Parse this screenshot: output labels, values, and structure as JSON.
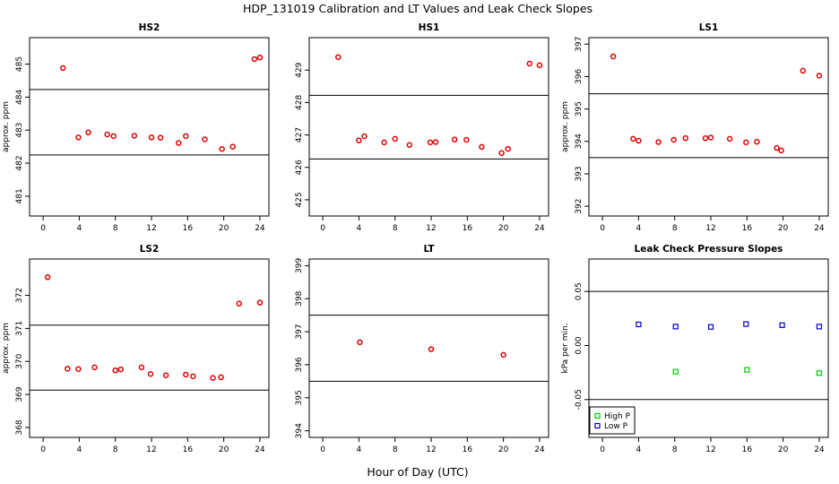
{
  "figure": {
    "title": "HDP_131019  Calibration and LT Values and Leak Check Slopes",
    "xlabel": "Hour of Day (UTC)"
  },
  "chart_data": [
    {
      "type": "scatter",
      "title": "HS2",
      "ylabel": "approx. ppm",
      "xlim": [
        -1.5,
        25
      ],
      "ylim": [
        480.4,
        485.8
      ],
      "xticks": [
        0,
        4,
        8,
        12,
        16,
        20,
        24
      ],
      "yticks": [
        481,
        482,
        483,
        484,
        485
      ],
      "hlines": [
        484.23,
        482.25
      ],
      "series": [
        {
          "name": "values",
          "color": "#dd0000",
          "marker": "circle",
          "points": [
            [
              2.2,
              484.88
            ],
            [
              3.9,
              482.78
            ],
            [
              5.0,
              482.93
            ],
            [
              7.1,
              482.87
            ],
            [
              7.8,
              482.82
            ],
            [
              10.1,
              482.83
            ],
            [
              12.0,
              482.78
            ],
            [
              13.0,
              482.77
            ],
            [
              15.0,
              482.61
            ],
            [
              15.8,
              482.82
            ],
            [
              17.9,
              482.72
            ],
            [
              19.8,
              482.43
            ],
            [
              21.0,
              482.5
            ],
            [
              23.4,
              485.15
            ],
            [
              24.0,
              485.2
            ]
          ]
        }
      ]
    },
    {
      "type": "scatter",
      "title": "HS1",
      "ylabel": "",
      "xlim": [
        -1.5,
        25
      ],
      "ylim": [
        424.5,
        430.0
      ],
      "xticks": [
        0,
        4,
        8,
        12,
        16,
        20,
        24
      ],
      "yticks": [
        425,
        426,
        427,
        428,
        429
      ],
      "hlines": [
        428.22,
        426.26
      ],
      "series": [
        {
          "name": "values",
          "color": "#dd0000",
          "marker": "circle",
          "points": [
            [
              1.7,
              429.4
            ],
            [
              4.0,
              426.83
            ],
            [
              4.6,
              426.96
            ],
            [
              6.8,
              426.77
            ],
            [
              8.0,
              426.88
            ],
            [
              9.6,
              426.69
            ],
            [
              11.9,
              426.77
            ],
            [
              12.5,
              426.78
            ],
            [
              14.6,
              426.86
            ],
            [
              15.9,
              426.85
            ],
            [
              17.6,
              426.63
            ],
            [
              19.8,
              426.44
            ],
            [
              20.5,
              426.57
            ],
            [
              22.9,
              429.2
            ],
            [
              24.0,
              429.15
            ]
          ]
        }
      ]
    },
    {
      "type": "scatter",
      "title": "LS1",
      "ylabel": "approx. ppm",
      "xlim": [
        -1.5,
        25
      ],
      "ylim": [
        391.7,
        397.2
      ],
      "xticks": [
        0,
        4,
        8,
        12,
        16,
        20,
        24
      ],
      "yticks": [
        392,
        393,
        394,
        395,
        396,
        397
      ],
      "hlines": [
        395.47,
        393.5
      ],
      "series": [
        {
          "name": "values",
          "color": "#dd0000",
          "marker": "circle",
          "points": [
            [
              1.2,
              396.62
            ],
            [
              3.4,
              394.08
            ],
            [
              4.0,
              394.02
            ],
            [
              6.2,
              393.98
            ],
            [
              7.9,
              394.05
            ],
            [
              9.2,
              394.1
            ],
            [
              11.4,
              394.1
            ],
            [
              12.0,
              394.12
            ],
            [
              14.1,
              394.08
            ],
            [
              15.9,
              393.97
            ],
            [
              17.1,
              393.99
            ],
            [
              19.3,
              393.8
            ],
            [
              19.8,
              393.72
            ],
            [
              22.2,
              396.18
            ],
            [
              24.0,
              396.03
            ]
          ]
        }
      ]
    },
    {
      "type": "scatter",
      "title": "LS2",
      "ylabel": "approx. ppm",
      "xlim": [
        -1.5,
        25
      ],
      "ylim": [
        367.7,
        373.1
      ],
      "xticks": [
        0,
        4,
        8,
        12,
        16,
        20,
        24
      ],
      "yticks": [
        368,
        369,
        370,
        371,
        372
      ],
      "hlines": [
        371.1,
        369.13
      ],
      "series": [
        {
          "name": "values",
          "color": "#dd0000",
          "marker": "circle",
          "points": [
            [
              0.5,
              372.55
            ],
            [
              2.7,
              369.78
            ],
            [
              3.9,
              369.77
            ],
            [
              5.7,
              369.82
            ],
            [
              8.0,
              369.73
            ],
            [
              8.6,
              369.76
            ],
            [
              10.9,
              369.82
            ],
            [
              11.9,
              369.62
            ],
            [
              13.6,
              369.58
            ],
            [
              15.8,
              369.6
            ],
            [
              16.6,
              369.55
            ],
            [
              18.8,
              369.5
            ],
            [
              19.7,
              369.52
            ],
            [
              21.7,
              371.75
            ],
            [
              24.0,
              371.78
            ]
          ]
        }
      ]
    },
    {
      "type": "scatter",
      "title": "LT",
      "ylabel": "",
      "xlim": [
        -1.5,
        25
      ],
      "ylim": [
        393.8,
        399.2
      ],
      "xticks": [
        0,
        4,
        8,
        12,
        16,
        20,
        24
      ],
      "yticks": [
        394,
        395,
        396,
        397,
        398,
        399
      ],
      "hlines": [
        397.5,
        395.5
      ],
      "series": [
        {
          "name": "values",
          "color": "#dd0000",
          "marker": "circle",
          "points": [
            [
              4.1,
              396.68
            ],
            [
              12.0,
              396.47
            ],
            [
              20.0,
              396.3
            ]
          ]
        }
      ]
    },
    {
      "type": "scatter",
      "title": "Leak Check Pressure Slopes",
      "ylabel": "kPa per min.",
      "xlim": [
        -1.5,
        25
      ],
      "ylim": [
        -0.085,
        0.08
      ],
      "xticks": [
        0,
        4,
        8,
        12,
        16,
        20,
        24
      ],
      "yticks": [
        -0.05,
        0.0,
        0.05
      ],
      "ytick_labels": [
        "-0.05",
        "0.00",
        "0.05"
      ],
      "hlines": [
        0.05,
        -0.05
      ],
      "legend": {
        "position": "bottom-left",
        "items": [
          "High P",
          "Low P"
        ]
      },
      "series": [
        {
          "name": "High P",
          "color": "#00cc00",
          "marker": "square",
          "points": [
            [
              8.1,
              -0.0242
            ],
            [
              16.0,
              -0.0225
            ],
            [
              24.0,
              -0.0255
            ]
          ]
        },
        {
          "name": "Low P",
          "color": "#0000cc",
          "marker": "square",
          "points": [
            [
              4.0,
              0.0195
            ],
            [
              8.1,
              0.0175
            ],
            [
              12.0,
              0.0172
            ],
            [
              15.9,
              0.0198
            ],
            [
              19.9,
              0.0188
            ],
            [
              24.0,
              0.0175
            ]
          ]
        }
      ]
    }
  ]
}
